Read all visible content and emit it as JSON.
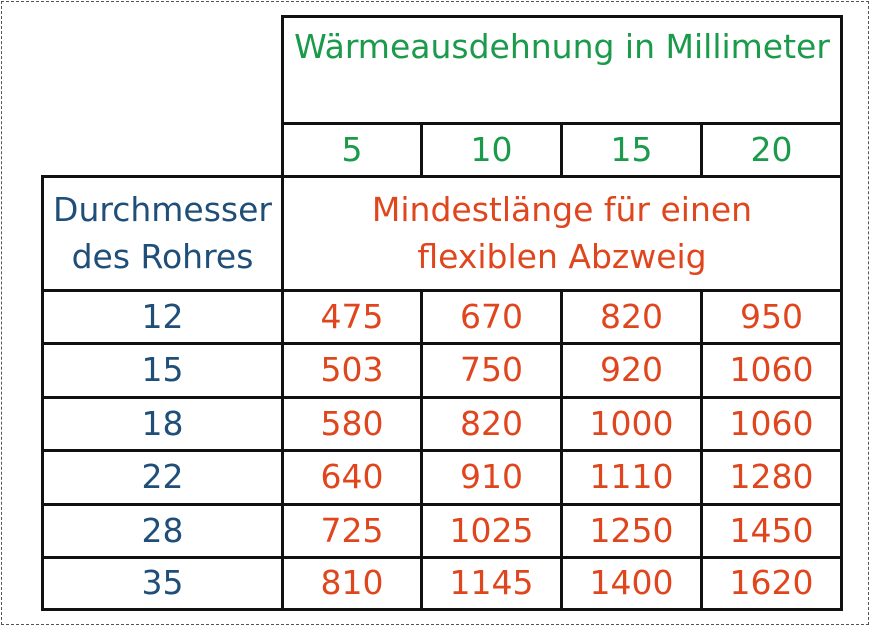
{
  "header": {
    "title": "Wärmeausdehnung in Millimeter",
    "columns": [
      "5",
      "10",
      "15",
      "20"
    ]
  },
  "row_header": {
    "line1": "Durchmesser",
    "line2": "des Rohres"
  },
  "subheader": {
    "line1": "Mindestlänge für einen",
    "line2": "flexiblen Abzweig"
  },
  "rows": [
    {
      "diameter": "12",
      "values": [
        "475",
        "670",
        "820",
        "950"
      ]
    },
    {
      "diameter": "15",
      "values": [
        "503",
        "750",
        "920",
        "1060"
      ]
    },
    {
      "diameter": "18",
      "values": [
        "580",
        "820",
        "1000",
        "1060"
      ]
    },
    {
      "diameter": "22",
      "values": [
        "640",
        "910",
        "1110",
        "1280"
      ]
    },
    {
      "diameter": "28",
      "values": [
        "725",
        "1025",
        "1250",
        "1450"
      ]
    },
    {
      "diameter": "35",
      "values": [
        "810",
        "1145",
        "1400",
        "1620"
      ]
    }
  ],
  "colors": {
    "title": "#1a9a4a",
    "diameter": "#1f4e79",
    "values": "#e0461e"
  }
}
